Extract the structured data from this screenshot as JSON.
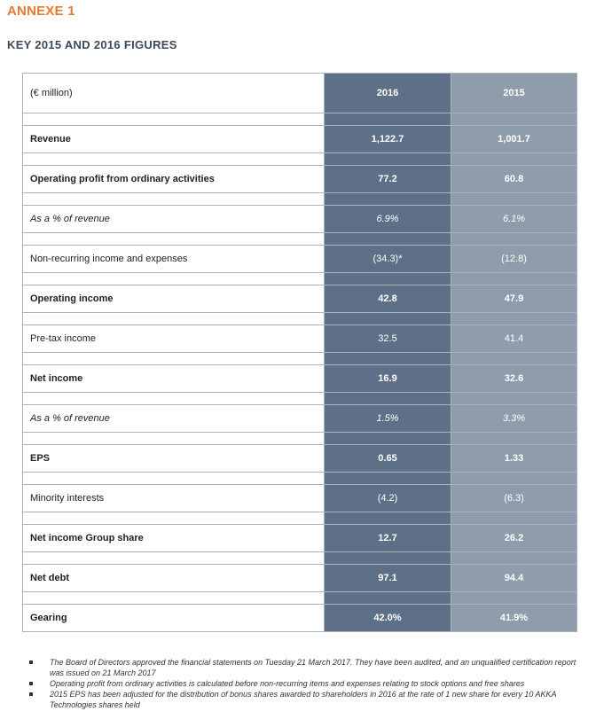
{
  "annexe_title": "ANNEXE 1",
  "section_title": "KEY 2015 AND 2016 FIGURES",
  "table": {
    "unit_label": "(€ million)",
    "col_2016": "2016",
    "col_2015": "2015",
    "rows": [
      {
        "label": "Revenue",
        "v2016": "1,122.7",
        "v2015": "1,001.7",
        "style": "bold"
      },
      {
        "label": "Operating profit from ordinary activities",
        "v2016": "77.2",
        "v2015": "60.8",
        "style": "bold"
      },
      {
        "label": "As a % of revenue",
        "v2016": "6.9%",
        "v2015": "6.1%",
        "style": "italic"
      },
      {
        "label": "Non-recurring income and expenses",
        "v2016": "(34.3)*",
        "v2015": "(12.8)",
        "style": "normal"
      },
      {
        "label": "Operating income",
        "v2016": "42.8",
        "v2015": "47.9",
        "style": "bold"
      },
      {
        "label": "Pre-tax income",
        "v2016": "32.5",
        "v2015": "41.4",
        "style": "normal"
      },
      {
        "label": "Net income",
        "v2016": "16.9",
        "v2015": "32.6",
        "style": "bold"
      },
      {
        "label": "As a % of revenue",
        "v2016": "1.5%",
        "v2015": "3.3%",
        "style": "italic"
      },
      {
        "label": "EPS",
        "v2016": "0.65",
        "v2015": "1.33",
        "style": "bold"
      },
      {
        "label": "Minority interests",
        "v2016": "(4.2)",
        "v2015": "(6.3)",
        "style": "normal"
      },
      {
        "label": "Net income Group share",
        "v2016": "12.7",
        "v2015": "26.2",
        "style": "bold"
      },
      {
        "label": "Net debt",
        "v2016": "97.1",
        "v2015": "94.4",
        "style": "bold"
      },
      {
        "label": "Gearing",
        "v2016": "42.0%",
        "v2015": "41.9%",
        "style": "bold"
      }
    ]
  },
  "notes": [
    "The Board of Directors approved the financial statements on Tuesday 21 March 2017. They have been audited, and an unqualified certification report was issued on 21 March 2017",
    "Operating profit from ordinary activities is calculated before non-recurring items and expenses relating to stock options and free shares",
    "2015 EPS has been adjusted for the distribution of bonus shares awarded to shareholders in 2016 at the rate of 1 new share for every 10 AKKA Technologies shares held"
  ],
  "colors": {
    "accent": "#e8792e",
    "col_2016_bg": "#5e7088",
    "col_2015_bg": "#8f9cab"
  }
}
